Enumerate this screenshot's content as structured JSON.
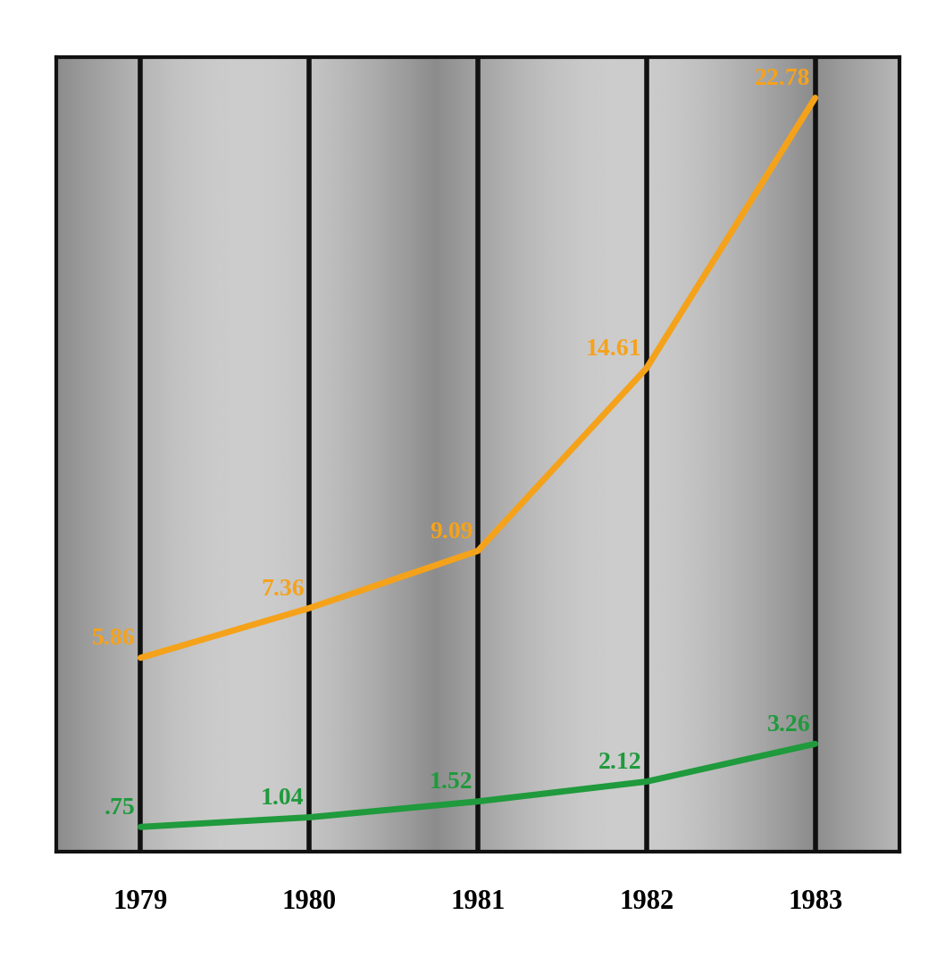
{
  "chart_data": {
    "type": "line",
    "categories": [
      "1979",
      "1980",
      "1981",
      "1982",
      "1983"
    ],
    "series": [
      {
        "color": "#f5a21b",
        "values": [
          5.86,
          7.36,
          9.09,
          14.61,
          22.78
        ],
        "value_labels": [
          "5.86",
          "7.36",
          "9.09",
          "14.61",
          "22.78"
        ]
      },
      {
        "color": "#1f9a3c",
        "values": [
          0.75,
          1.04,
          1.52,
          2.12,
          3.26
        ],
        "value_labels": [
          ".75",
          "1.04",
          "1.52",
          "2.12",
          "3.26"
        ]
      }
    ],
    "ylim": [
      0,
      24
    ],
    "yticks": [],
    "grid": true,
    "data_labels": true,
    "tick_labels": "x"
  }
}
